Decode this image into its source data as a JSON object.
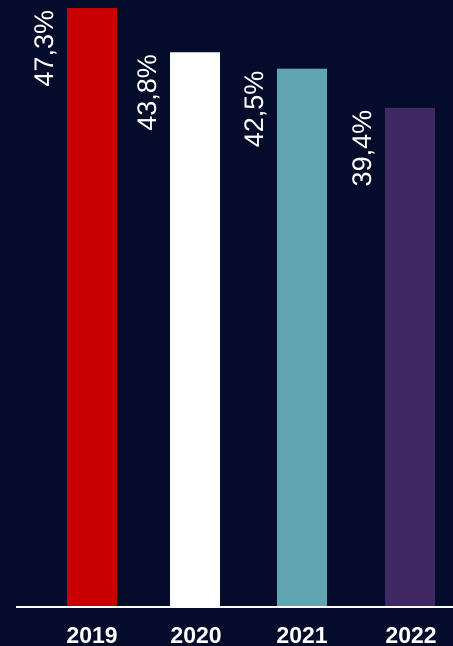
{
  "chart_data": {
    "type": "bar",
    "title": "",
    "xlabel": "",
    "ylabel": "",
    "categories": [
      "2019",
      "2020",
      "2021",
      "2022"
    ],
    "values": [
      47.3,
      43.8,
      42.5,
      39.4
    ],
    "value_labels": [
      "47,3%",
      "43,8%",
      "42,5%",
      "39,4%"
    ],
    "colors": [
      "#c90000",
      "#ffffff",
      "#61a5b0",
      "#3f2864"
    ],
    "ylim": [
      0,
      47.3
    ],
    "grid": false,
    "legend": "none"
  },
  "theme": {
    "background": "#050b2b",
    "axis_color": "#ffffff",
    "text_color": "#ffffff"
  }
}
